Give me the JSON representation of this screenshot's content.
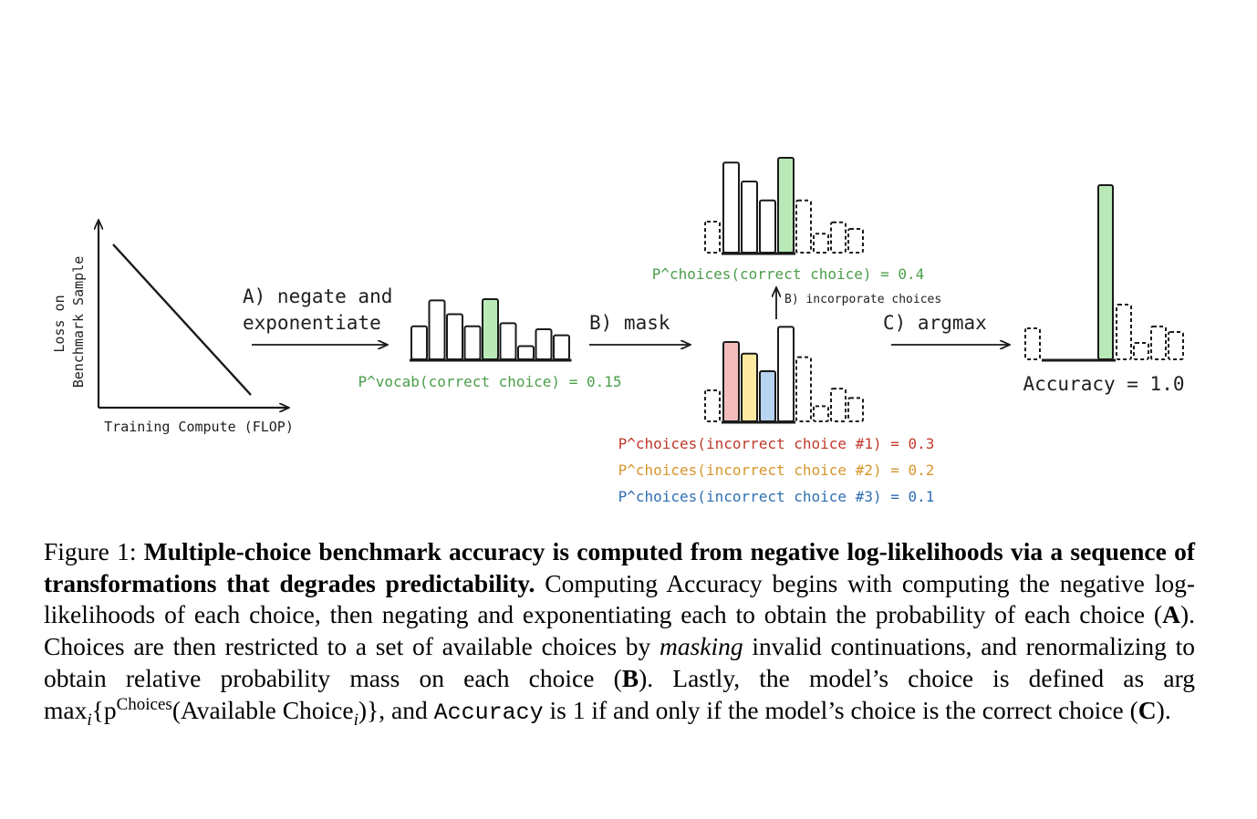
{
  "figure": {
    "loss_plot": {
      "ylabel_line1": "Loss on",
      "ylabel_line2": "Benchmark Sample",
      "xlabel": "Training Compute (FLOP)"
    },
    "step_a": {
      "label_line1": "A) negate and",
      "label_line2": "exponentiate",
      "result": "P^vocab(correct choice) = 0.15"
    },
    "step_b": {
      "label": "B) mask",
      "incorporate": "B) incorporate choices",
      "correct_result": "P^choices(correct choice) = 0.4",
      "incorrect_results": [
        {
          "text": "P^choices(incorrect choice #1) = 0.3",
          "color": "#c0392b"
        },
        {
          "text": "P^choices(incorrect choice #2) = 0.2",
          "color": "#d6962b"
        },
        {
          "text": "P^choices(incorrect choice #3) = 0.1",
          "color": "#2f6fb3"
        }
      ]
    },
    "step_c": {
      "label": "C) argmax",
      "result": "Accuracy = 1.0"
    },
    "colors": {
      "correct": "#b9e9b7",
      "correct_text": "#4a9e4a",
      "incorrect_1": "#f2bcbc",
      "incorrect_2": "#fbeaa0",
      "incorrect_3": "#b7d4f2",
      "outline": "#1a1a1a"
    },
    "histograms": {
      "vocab": {
        "values": [
          0.55,
          0.98,
          0.75,
          0.55,
          1.0,
          0.6,
          0.22,
          0.5,
          0.4
        ],
        "correct_index": 4
      },
      "choices_top": {
        "values": [
          0.95,
          0.75,
          0.55,
          1.0
        ],
        "masked": [
          0.55,
          0.2,
          0.32,
          0.25
        ]
      },
      "choices_mid": {
        "values": [
          0.68,
          0.58,
          0.43,
          0.81
        ],
        "masked": [
          0.4,
          0.55,
          0.13,
          0.28,
          0.2
        ]
      },
      "accuracy": {
        "values": [
          0.0,
          0.0,
          0.0,
          1.0
        ],
        "masked": [
          0.26,
          0.4,
          0.12,
          0.24,
          0.2
        ]
      }
    }
  },
  "caption": {
    "prefix": "Figure 1: ",
    "bold": "Multiple-choice benchmark accuracy is computed from negative log-likelihoods via a sequence of transformations that degrades predictability.",
    "part1": " Computing Accuracy begins with computing the negative log-likelihoods of each choice, then negating and exponentiating each to obtain the probability of each choice (",
    "A": "A",
    "part2": "). Choices are then restricted to a set of available choices by ",
    "masking": "masking",
    "part3": " invalid continuations, and renormalizing to obtain relative probability mass on each choice (",
    "B": "B",
    "part4": "). Lastly, the model’s choice is defined as arg max",
    "sub_i": "i",
    "part5": "{p",
    "sup_choices": "Choices",
    "part6": "(Available Choice",
    "sub_i2": "i",
    "part7": ")}, and ",
    "accuracy_mono": "Accuracy",
    "part8": " is 1 if and only if the model’s choice is the correct choice (",
    "C": "C",
    "part9": ")."
  }
}
